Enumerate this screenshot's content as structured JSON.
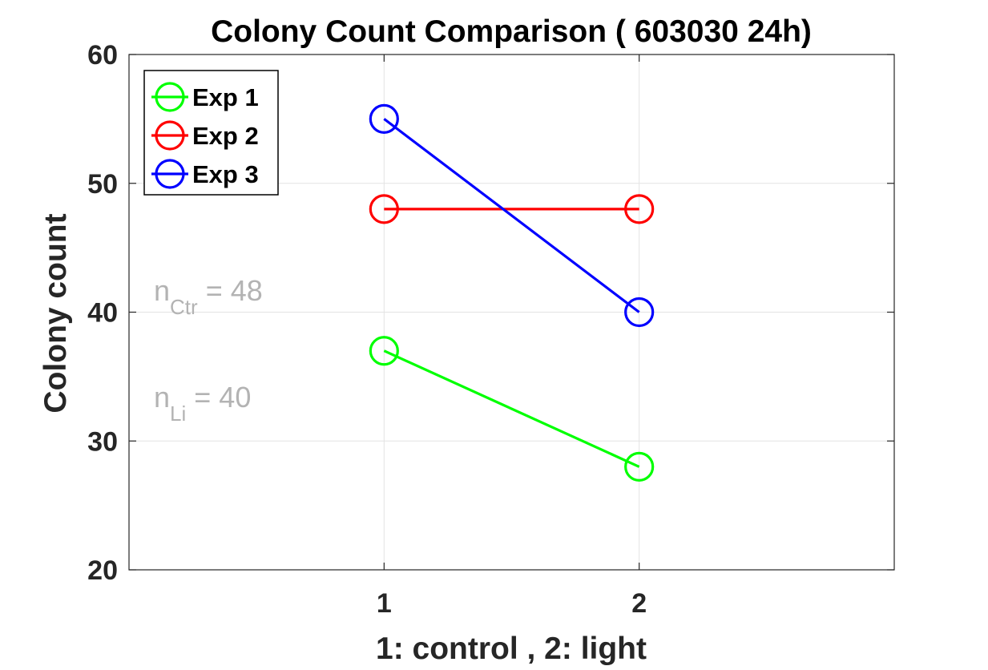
{
  "chart_data": {
    "type": "line",
    "title": "Colony Count Comparison ( 603030 24h)",
    "xlabel": "1: control ,  2: light",
    "ylabel": "Colony count",
    "xlim": [
      0,
      3
    ],
    "ylim": [
      20,
      60
    ],
    "xticks": [
      1,
      2
    ],
    "yticks": [
      20,
      30,
      40,
      50,
      60
    ],
    "grid": true,
    "legend_position": "top-left",
    "marker": "circle",
    "x": [
      1,
      2
    ],
    "series": [
      {
        "name": "Exp 1",
        "values": [
          37,
          28
        ],
        "color": "#00ff00"
      },
      {
        "name": "Exp 2",
        "values": [
          48,
          48
        ],
        "color": "#ff0000"
      },
      {
        "name": "Exp 3",
        "values": [
          55,
          40
        ],
        "color": "#0000ff"
      }
    ],
    "annotations": [
      {
        "main": "n",
        "sub": "Ctr",
        "rest": " = 48"
      },
      {
        "main": "n",
        "sub": "Li",
        "rest": " = 40"
      }
    ]
  }
}
